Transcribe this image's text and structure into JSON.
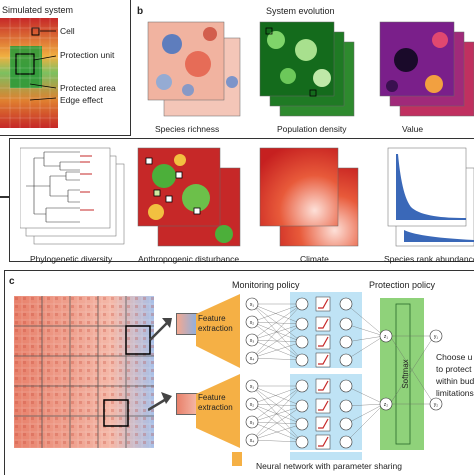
{
  "panel_a": {
    "title": "Simulated system",
    "labels": {
      "cell": "Cell",
      "protection_unit": "Protection unit",
      "protected_area": "Protected area",
      "edge_effect": "Edge effect"
    }
  },
  "panel_b": {
    "letter": "b",
    "title": "System evolution",
    "top_maps": [
      "Species richness",
      "Population density",
      "Value"
    ],
    "bottom_maps": [
      "Phylogenetic diversity",
      "Anthropogenic disturbance",
      "Climate",
      "Species rank abundance"
    ]
  },
  "panel_c": {
    "letter": "c",
    "monitoring_title": "Monitoring policy",
    "protection_title": "Protection policy",
    "feature_extraction": "Feature extraction",
    "softmax": "Softmax",
    "nn_caption": "Neural network with parameter sharing",
    "choose_text": [
      "Choose u",
      "to protect",
      "within budg",
      "limitations"
    ],
    "inputs": [
      "x1",
      "x2",
      "x3",
      "x4"
    ],
    "outputs": [
      "y1",
      "y2"
    ],
    "z_top": "z1",
    "z_bottom": "z2"
  },
  "colors": {
    "red": "#c62828",
    "green": "#1b7a2a",
    "orange": "#f5b045",
    "blue_layer": "#bfe3f5",
    "softmax_green": "#8fd27a"
  }
}
